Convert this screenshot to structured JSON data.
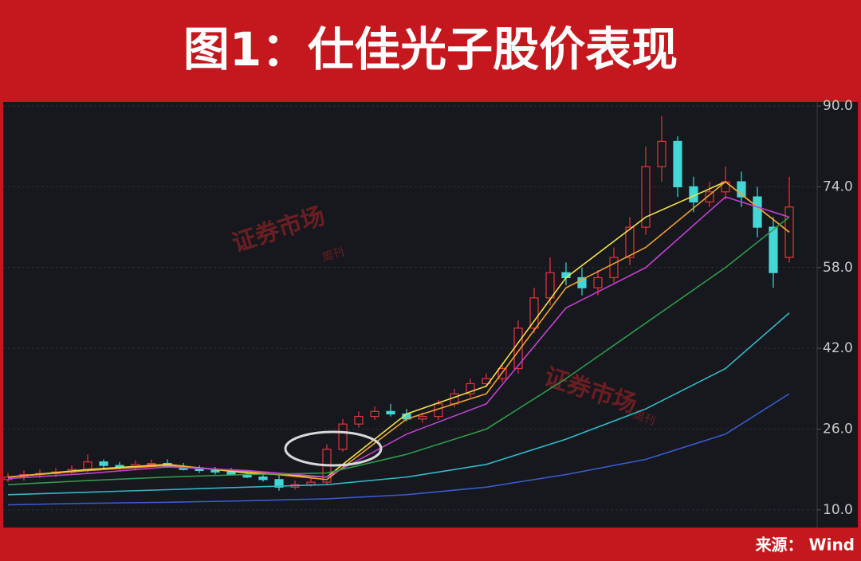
{
  "header": {
    "title": "图1：仕佳光子股价表现"
  },
  "footer": {
    "source": "来源： Wind"
  },
  "chart_data": {
    "type": "candlestick",
    "watermark": "证券市场",
    "watermark_small": "周刊",
    "up_color": "#e8333b",
    "down_color": "#45d6d6",
    "ylim": [
      6.5,
      90.8
    ],
    "yticks": [
      {
        "value": 10,
        "label": "10.0"
      },
      {
        "value": 26,
        "label": "26.0"
      },
      {
        "value": 42,
        "label": "42.0"
      },
      {
        "value": 58,
        "label": "58.0"
      },
      {
        "value": 74,
        "label": "74.0"
      },
      {
        "value": 90,
        "label": "90.0"
      }
    ],
    "grid": true,
    "open": [
      16,
      16.5,
      17,
      17.2,
      17.5,
      18,
      19.5,
      18.8,
      18.5,
      19,
      19.2,
      18.5,
      18,
      17.8,
      17.5,
      17,
      16.5,
      16,
      14.5,
      15,
      15.5,
      22,
      27,
      28.5,
      29.5,
      29,
      28,
      28.5,
      31,
      33,
      35,
      36,
      38,
      46,
      52,
      57,
      56,
      54,
      56,
      60,
      66,
      78,
      83,
      74,
      71,
      73,
      75,
      72,
      66,
      60
    ],
    "high": [
      17.3,
      17.8,
      18,
      18.3,
      18.8,
      21,
      20,
      19.5,
      19.8,
      20,
      20,
      19.3,
      18.8,
      18.5,
      18.3,
      17.8,
      17.2,
      16.8,
      15.8,
      16.3,
      23,
      28,
      29.5,
      30.5,
      31,
      30,
      29.3,
      31.8,
      34,
      36,
      37,
      39,
      47.5,
      54,
      60,
      59,
      58,
      57.5,
      62,
      68,
      82,
      88,
      84,
      76,
      75,
      78,
      77,
      74,
      68,
      76
    ],
    "low": [
      15.5,
      15.8,
      16.3,
      16.5,
      17,
      17.4,
      18.2,
      18,
      17.8,
      18.5,
      18.3,
      17.8,
      17.3,
      17,
      16.8,
      16.3,
      15.6,
      13.8,
      14,
      14.6,
      15,
      21.5,
      26.3,
      27.8,
      28.5,
      27.5,
      27.3,
      27.8,
      30.3,
      32.3,
      34.3,
      35.3,
      37,
      45,
      50.5,
      54.5,
      52.5,
      52.5,
      55,
      58.5,
      64.5,
      75,
      72,
      69,
      70,
      71.5,
      70,
      64,
      54,
      59
    ],
    "close": [
      16.5,
      17,
      17.2,
      17.5,
      18,
      19.5,
      18.8,
      18.5,
      19,
      19.2,
      18.5,
      18,
      17.8,
      17.5,
      17,
      16.5,
      16,
      14.5,
      15,
      15.5,
      22,
      27,
      28.5,
      29.5,
      29,
      28,
      28.5,
      31,
      33,
      35,
      36,
      38,
      46,
      52,
      57,
      56,
      54,
      56,
      60,
      66,
      78,
      83,
      74,
      71,
      73,
      75,
      72,
      66,
      57,
      70
    ],
    "lines": [
      {
        "color": "#f2e14b",
        "x": [
          0,
          5,
          10,
          15,
          20,
          25,
          30,
          35,
          40,
          45,
          49
        ],
        "values": [
          16.5,
          18,
          19,
          17.3,
          16.5,
          29,
          34.5,
          56,
          68,
          75,
          65
        ]
      },
      {
        "color": "#f0a030",
        "x": [
          0,
          5,
          10,
          15,
          20,
          25,
          30,
          35,
          40,
          45,
          49
        ],
        "values": [
          16.5,
          17.8,
          18.8,
          17.6,
          16,
          28,
          33,
          54,
          62,
          75,
          65
        ]
      },
      {
        "color": "#c040d0",
        "x": [
          0,
          5,
          10,
          15,
          20,
          25,
          30,
          35,
          40,
          45,
          49
        ],
        "values": [
          16.2,
          17.2,
          18.5,
          17.8,
          16.5,
          25,
          31,
          50,
          58,
          72,
          68
        ]
      },
      {
        "color": "#2e9a4a",
        "x": [
          0,
          5,
          10,
          15,
          20,
          25,
          30,
          35,
          40,
          45,
          49
        ],
        "values": [
          15,
          15.8,
          16.5,
          17,
          17.3,
          21,
          26,
          36,
          47,
          58,
          68
        ]
      },
      {
        "color": "#30b8c8",
        "x": [
          0,
          5,
          10,
          15,
          20,
          25,
          30,
          35,
          40,
          45,
          49
        ],
        "values": [
          13,
          13.5,
          14,
          14.5,
          15,
          16.5,
          19,
          24,
          30,
          38,
          49
        ]
      },
      {
        "color": "#3a5ad0",
        "x": [
          0,
          5,
          10,
          15,
          20,
          25,
          30,
          35,
          40,
          45,
          49
        ],
        "values": [
          11,
          11.3,
          11.5,
          11.8,
          12.2,
          13,
          14.5,
          17,
          20,
          25,
          33
        ]
      }
    ]
  }
}
